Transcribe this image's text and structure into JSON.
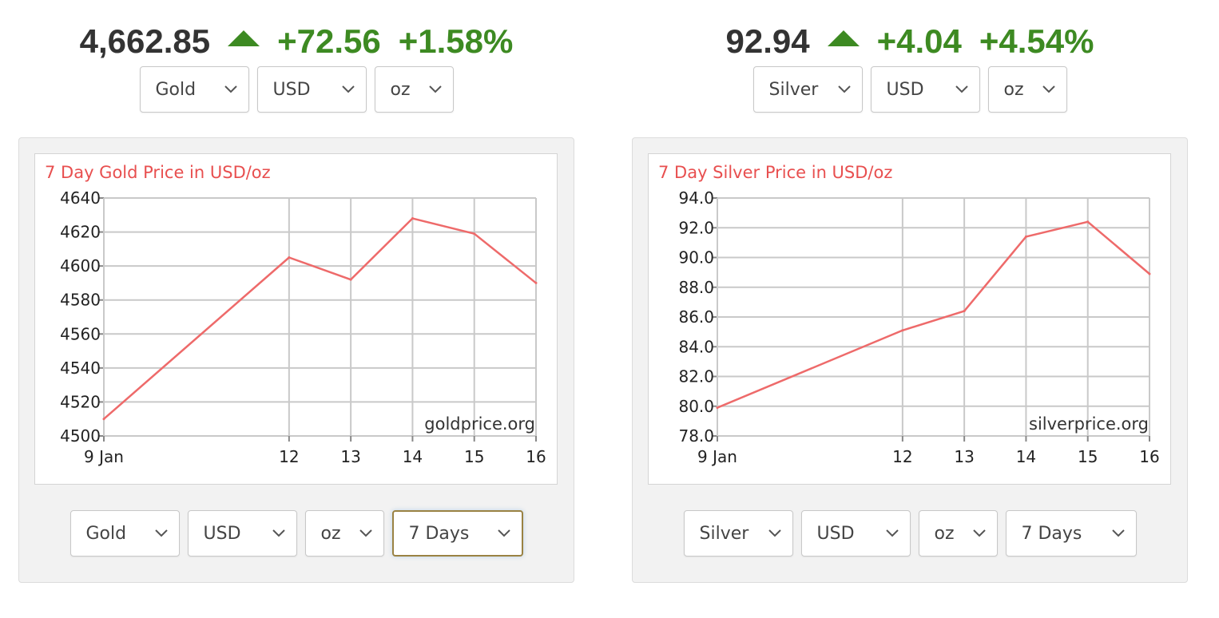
{
  "gold": {
    "price": "4,662.85",
    "change": "+72.56",
    "change_pct": "+1.58%",
    "trend_icon": "triangle-up-icon",
    "selectors_top": {
      "metal": "Gold",
      "currency": "USD",
      "unit": "oz"
    },
    "selectors_bottom": {
      "metal": "Gold",
      "currency": "USD",
      "unit": "oz",
      "period": "7 Days"
    }
  },
  "silver": {
    "price": "92.94",
    "change": "+4.04",
    "change_pct": "+4.54%",
    "trend_icon": "triangle-up-icon",
    "selectors_top": {
      "metal": "Silver",
      "currency": "USD",
      "unit": "oz"
    },
    "selectors_bottom": {
      "metal": "Silver",
      "currency": "USD",
      "unit": "oz",
      "period": "7 Days"
    }
  },
  "colors": {
    "up": "#3d8a22",
    "line": "#ee6a6a",
    "title": "#e84f4f",
    "grid": "#c9c9c9",
    "active_border": "#9a8243"
  },
  "chart_data": [
    {
      "type": "line",
      "title": "7 Day Gold Price in USD/oz",
      "watermark": "goldprice.org",
      "x": [
        9,
        12,
        13,
        14,
        15,
        16
      ],
      "x_tick_labels": [
        "9 Jan",
        "12",
        "13",
        "14",
        "15",
        "16"
      ],
      "xlim": [
        9,
        16
      ],
      "ylim": [
        4500,
        4640
      ],
      "y_ticks": [
        4500,
        4520,
        4540,
        4560,
        4580,
        4600,
        4620,
        4640
      ],
      "y_tick_labels": [
        "4500",
        "4520",
        "4540",
        "4560",
        "4580",
        "4600",
        "4620",
        "4640"
      ],
      "series": [
        {
          "points": [
            [
              9,
              4510
            ],
            [
              12,
              4605
            ],
            [
              13,
              4592
            ],
            [
              14,
              4628
            ],
            [
              15,
              4619
            ],
            [
              16,
              4590
            ]
          ]
        }
      ],
      "grid": true
    },
    {
      "type": "line",
      "title": "7 Day Silver Price in USD/oz",
      "watermark": "silverprice.org",
      "x": [
        9,
        12,
        13,
        14,
        15,
        16
      ],
      "x_tick_labels": [
        "9 Jan",
        "12",
        "13",
        "14",
        "15",
        "16"
      ],
      "xlim": [
        9,
        16
      ],
      "ylim": [
        78,
        94
      ],
      "y_ticks": [
        78,
        80,
        82,
        84,
        86,
        88,
        90,
        92,
        94
      ],
      "y_tick_labels": [
        "78.0",
        "80.0",
        "82.0",
        "84.0",
        "86.0",
        "88.0",
        "90.0",
        "92.0",
        "94.0"
      ],
      "series": [
        {
          "points": [
            [
              9,
              79.9
            ],
            [
              12,
              85.1
            ],
            [
              13,
              86.4
            ],
            [
              14,
              91.4
            ],
            [
              15,
              92.4
            ],
            [
              16,
              88.9
            ]
          ]
        }
      ],
      "grid": true
    }
  ]
}
